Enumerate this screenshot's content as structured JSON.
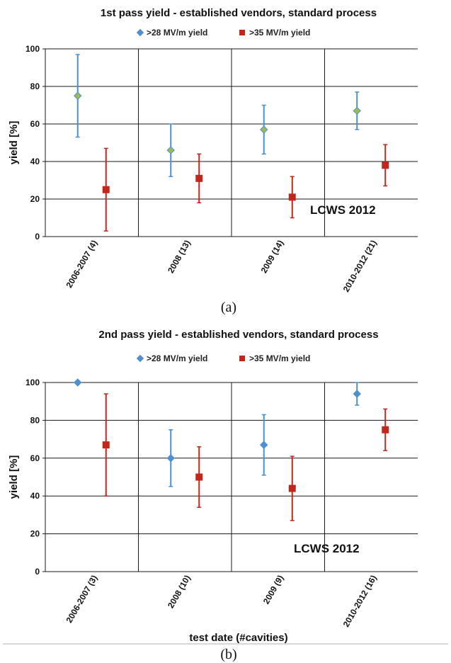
{
  "colors": {
    "series1": "#4f8fce",
    "series1_fill_a": "#9cba54",
    "series2": "#c0281e",
    "grid": "#1a1a1a"
  },
  "chart_data": [
    {
      "type": "scatter",
      "title": "1st pass yield - established vendors, standard process",
      "ylabel": "yield [%]",
      "xlabel": "",
      "ylim": [
        0,
        100
      ],
      "yticks": [
        0,
        20,
        40,
        60,
        80,
        100
      ],
      "categories": [
        "2006-2007 (4)",
        "2008 (13)",
        "2009 (14)",
        "2010-2012 (21)"
      ],
      "series": [
        {
          "name": ">28 MV/m yield",
          "values": [
            75,
            46,
            57,
            67
          ],
          "err_low": [
            53,
            32,
            44,
            57
          ],
          "err_high": [
            97,
            60,
            70,
            77
          ]
        },
        {
          "name": ">35 MV/m yield",
          "values": [
            25,
            31,
            21,
            38
          ],
          "err_low": [
            3,
            18,
            10,
            27
          ],
          "err_high": [
            47,
            44,
            32,
            49
          ]
        }
      ],
      "annotation": "LCWS 2012",
      "caption": "(a)",
      "grid": true,
      "legend": "top"
    },
    {
      "type": "scatter",
      "title": "2nd pass yield - established vendors, standard process",
      "ylabel": "yield [%]",
      "xlabel": "test date (#cavities)",
      "ylim": [
        0,
        100
      ],
      "yticks": [
        0,
        20,
        40,
        60,
        80,
        100
      ],
      "categories": [
        "2006-2007 (3)",
        "2008 (10)",
        "2009 (9)",
        "2010-2012 (16)"
      ],
      "series": [
        {
          "name": ">28 MV/m yield",
          "values": [
            100,
            60,
            67,
            94
          ],
          "err_low": [
            100,
            45,
            51,
            88
          ],
          "err_high": [
            100,
            75,
            83,
            100
          ]
        },
        {
          "name": ">35 MV/m yield",
          "values": [
            67,
            50,
            44,
            75
          ],
          "err_low": [
            40,
            34,
            27,
            64
          ],
          "err_high": [
            94,
            66,
            61,
            86
          ]
        }
      ],
      "annotation": "LCWS 2012",
      "caption": "(b)",
      "grid": true,
      "legend": "top"
    }
  ]
}
